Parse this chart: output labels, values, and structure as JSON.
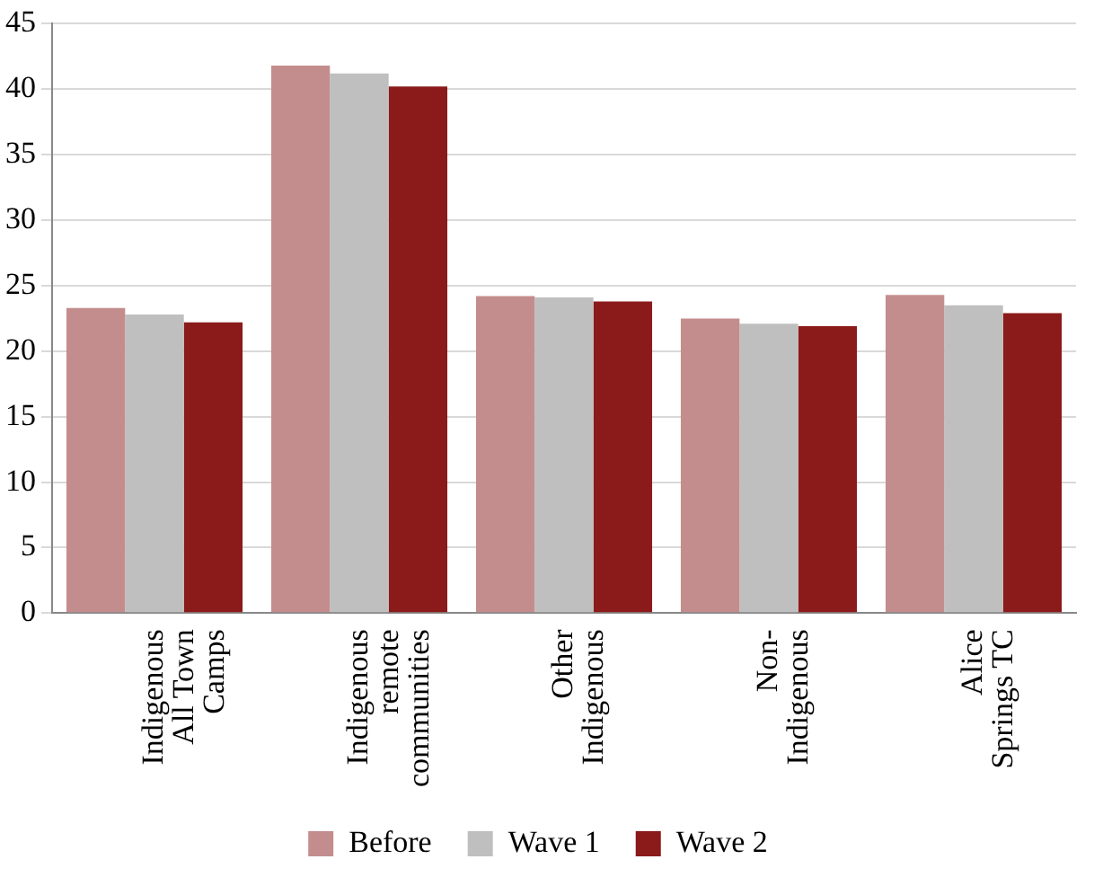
{
  "chart_data": {
    "type": "bar",
    "categories": [
      "Indigenous\nAll Town\nCamps",
      "Indigenous\nremote\ncommunities",
      "Other\nIndigenous",
      "Non-\nIndigenous",
      "Alice\nSprings TC"
    ],
    "series": [
      {
        "name": "Before",
        "color": "#c48d8d",
        "values": [
          23.3,
          41.8,
          24.2,
          22.5,
          24.3
        ]
      },
      {
        "name": "Wave 1",
        "color": "#bfbfbf",
        "values": [
          22.8,
          41.2,
          24.1,
          22.1,
          23.5
        ]
      },
      {
        "name": "Wave 2",
        "color": "#8b1a1a",
        "values": [
          22.2,
          40.2,
          23.8,
          21.9,
          22.9
        ]
      }
    ],
    "ylim": [
      0,
      45
    ],
    "yticks": [
      0,
      5,
      10,
      15,
      20,
      25,
      30,
      35,
      40,
      45
    ],
    "grid": "y",
    "legend": "bottom"
  }
}
